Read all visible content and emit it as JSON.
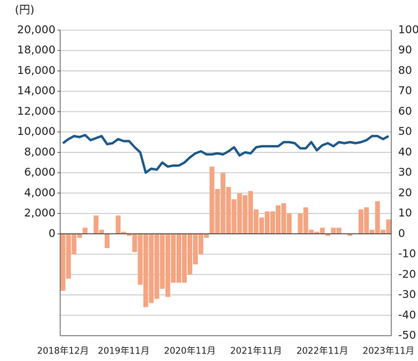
{
  "chart_data": {
    "type": "combo",
    "y_axis_label": "(円)",
    "categories": [
      "2018年12月",
      null,
      null,
      null,
      null,
      null,
      null,
      null,
      null,
      null,
      null,
      "2019年11月",
      null,
      null,
      null,
      null,
      null,
      null,
      null,
      null,
      null,
      null,
      null,
      "2020年11月",
      null,
      null,
      null,
      null,
      null,
      null,
      null,
      null,
      null,
      null,
      null,
      "2021年11月",
      null,
      null,
      null,
      null,
      null,
      null,
      null,
      null,
      null,
      null,
      null,
      "2022年11月",
      null,
      null,
      null,
      null,
      null,
      null,
      null,
      null,
      null,
      null,
      null,
      "2023年11月"
    ],
    "series": [
      {
        "type": "line",
        "axis": "y",
        "color": "#1f5a8a",
        "values": [
          8900,
          9300,
          9600,
          9500,
          9700,
          9200,
          9400,
          9600,
          8800,
          8900,
          9300,
          9100,
          9100,
          8500,
          8000,
          6000,
          6400,
          6300,
          7000,
          6600,
          6700,
          6700,
          7000,
          7500,
          7900,
          8100,
          7800,
          7800,
          7900,
          7800,
          8100,
          8500,
          7700,
          8000,
          7900,
          8500,
          8600,
          8600,
          8600,
          8600,
          9000,
          9000,
          8900,
          8400,
          8400,
          9000,
          8200,
          8700,
          8900,
          8600,
          9000,
          8900,
          9000,
          8900,
          9000,
          9200,
          9600,
          9600,
          9300,
          9600
        ]
      },
      {
        "type": "bar",
        "axis": "y2",
        "color": "#f4a582",
        "values": [
          -28,
          -22,
          -10,
          -2,
          3,
          0,
          9,
          2,
          -7,
          0,
          9,
          1,
          -1,
          -9,
          -25,
          -36,
          -34,
          -32,
          -27,
          -31,
          -24,
          -24,
          -24,
          -20,
          -15,
          -10,
          -2,
          33,
          22,
          30,
          23,
          17,
          20,
          19,
          21,
          12,
          8,
          11,
          11,
          14,
          15,
          10,
          0,
          10,
          13,
          2,
          1,
          3,
          -1,
          3,
          3,
          0,
          -1,
          0,
          12,
          13,
          2,
          16,
          2,
          7
        ]
      }
    ],
    "ylim": [
      -10000,
      20000
    ],
    "yticks": [
      0,
      {
        "value": 2000,
        "label": "2,000"
      },
      {
        "value": 4000,
        "label": "4,000"
      },
      {
        "value": 6000,
        "label": "6,000"
      },
      {
        "value": 8000,
        "label": "8,000"
      },
      {
        "value": 10000,
        "label": "10,000"
      },
      {
        "value": 12000,
        "label": "12,000"
      },
      {
        "value": 14000,
        "label": "14,000"
      },
      {
        "value": 16000,
        "label": "16,000"
      },
      {
        "value": 18000,
        "label": "18,000"
      },
      {
        "value": 20000,
        "label": "20,000"
      }
    ],
    "y2lim": [
      -50,
      100
    ],
    "y2ticks": [
      -50,
      -40,
      -30,
      -20,
      -10,
      0,
      10,
      20,
      30,
      40,
      50,
      60,
      70,
      80,
      90,
      100
    ],
    "grid": true
  }
}
